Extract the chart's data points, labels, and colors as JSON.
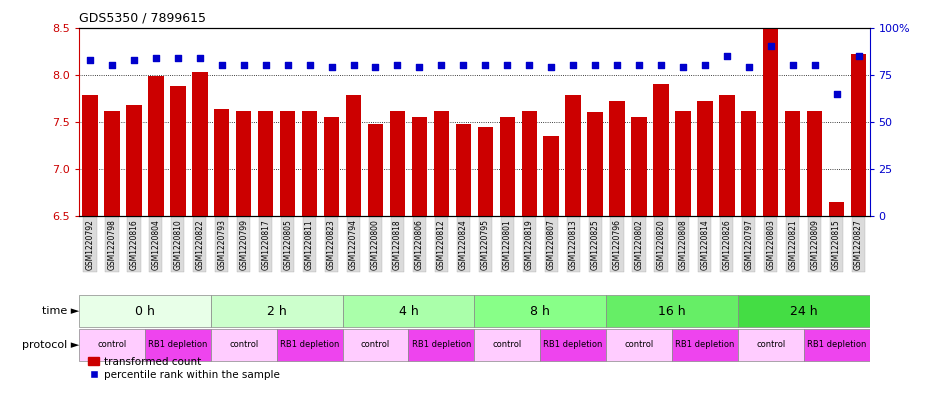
{
  "title": "GDS5350 / 7899615",
  "samples": [
    "GSM1220792",
    "GSM1220798",
    "GSM1220816",
    "GSM1220804",
    "GSM1220810",
    "GSM1220822",
    "GSM1220793",
    "GSM1220799",
    "GSM1220817",
    "GSM1220805",
    "GSM1220811",
    "GSM1220823",
    "GSM1220794",
    "GSM1220800",
    "GSM1220818",
    "GSM1220806",
    "GSM1220812",
    "GSM1220824",
    "GSM1220795",
    "GSM1220801",
    "GSM1220819",
    "GSM1220807",
    "GSM1220813",
    "GSM1220825",
    "GSM1220796",
    "GSM1220802",
    "GSM1220820",
    "GSM1220808",
    "GSM1220814",
    "GSM1220826",
    "GSM1220797",
    "GSM1220803",
    "GSM1220821",
    "GSM1220809",
    "GSM1220815",
    "GSM1220827"
  ],
  "bar_values": [
    7.78,
    7.62,
    7.68,
    7.99,
    7.88,
    8.03,
    7.64,
    7.62,
    7.62,
    7.62,
    7.62,
    7.55,
    7.78,
    7.48,
    7.62,
    7.55,
    7.62,
    7.48,
    7.45,
    7.55,
    7.62,
    7.35,
    7.78,
    7.6,
    7.72,
    7.55,
    7.9,
    7.62,
    7.72,
    7.78,
    7.62,
    8.5,
    7.62,
    7.62,
    6.65,
    8.22
  ],
  "percentile_values": [
    83,
    80,
    83,
    84,
    84,
    84,
    80,
    80,
    80,
    80,
    80,
    79,
    80,
    79,
    80,
    79,
    80,
    80,
    80,
    80,
    80,
    79,
    80,
    80,
    80,
    80,
    80,
    79,
    80,
    85,
    79,
    90,
    80,
    80,
    65,
    85
  ],
  "bar_color": "#cc0000",
  "dot_color": "#0000cc",
  "ylim_left": [
    6.5,
    8.5
  ],
  "ylim_right": [
    0,
    100
  ],
  "yticks_left": [
    6.5,
    7.0,
    7.5,
    8.0,
    8.5
  ],
  "yticks_right": [
    0,
    25,
    50,
    75,
    100
  ],
  "grid_lines": [
    7.0,
    7.5,
    8.0
  ],
  "time_groups": [
    {
      "label": "0 h",
      "start": 0,
      "end": 6,
      "color": "#e8ffe8"
    },
    {
      "label": "2 h",
      "start": 6,
      "end": 12,
      "color": "#ccffcc"
    },
    {
      "label": "4 h",
      "start": 12,
      "end": 18,
      "color": "#aaffaa"
    },
    {
      "label": "8 h",
      "start": 18,
      "end": 24,
      "color": "#88ff88"
    },
    {
      "label": "16 h",
      "start": 24,
      "end": 30,
      "color": "#66ee66"
    },
    {
      "label": "24 h",
      "start": 30,
      "end": 36,
      "color": "#44dd44"
    }
  ],
  "protocol_groups": [
    {
      "label": "control",
      "start": 0,
      "end": 3,
      "color": "#ffccff"
    },
    {
      "label": "RB1 depletion",
      "start": 3,
      "end": 6,
      "color": "#ee44ee"
    },
    {
      "label": "control",
      "start": 6,
      "end": 9,
      "color": "#ffccff"
    },
    {
      "label": "RB1 depletion",
      "start": 9,
      "end": 12,
      "color": "#ee44ee"
    },
    {
      "label": "control",
      "start": 12,
      "end": 15,
      "color": "#ffccff"
    },
    {
      "label": "RB1 depletion",
      "start": 15,
      "end": 18,
      "color": "#ee44ee"
    },
    {
      "label": "control",
      "start": 18,
      "end": 21,
      "color": "#ffccff"
    },
    {
      "label": "RB1 depletion",
      "start": 21,
      "end": 24,
      "color": "#ee44ee"
    },
    {
      "label": "control",
      "start": 24,
      "end": 27,
      "color": "#ffccff"
    },
    {
      "label": "RB1 depletion",
      "start": 27,
      "end": 30,
      "color": "#ee44ee"
    },
    {
      "label": "control",
      "start": 30,
      "end": 33,
      "color": "#ffccff"
    },
    {
      "label": "RB1 depletion",
      "start": 33,
      "end": 36,
      "color": "#ee44ee"
    }
  ],
  "legend_bar_label": "transformed count",
  "legend_dot_label": "percentile rank within the sample",
  "xlabel_time": "time",
  "xlabel_protocol": "protocol"
}
